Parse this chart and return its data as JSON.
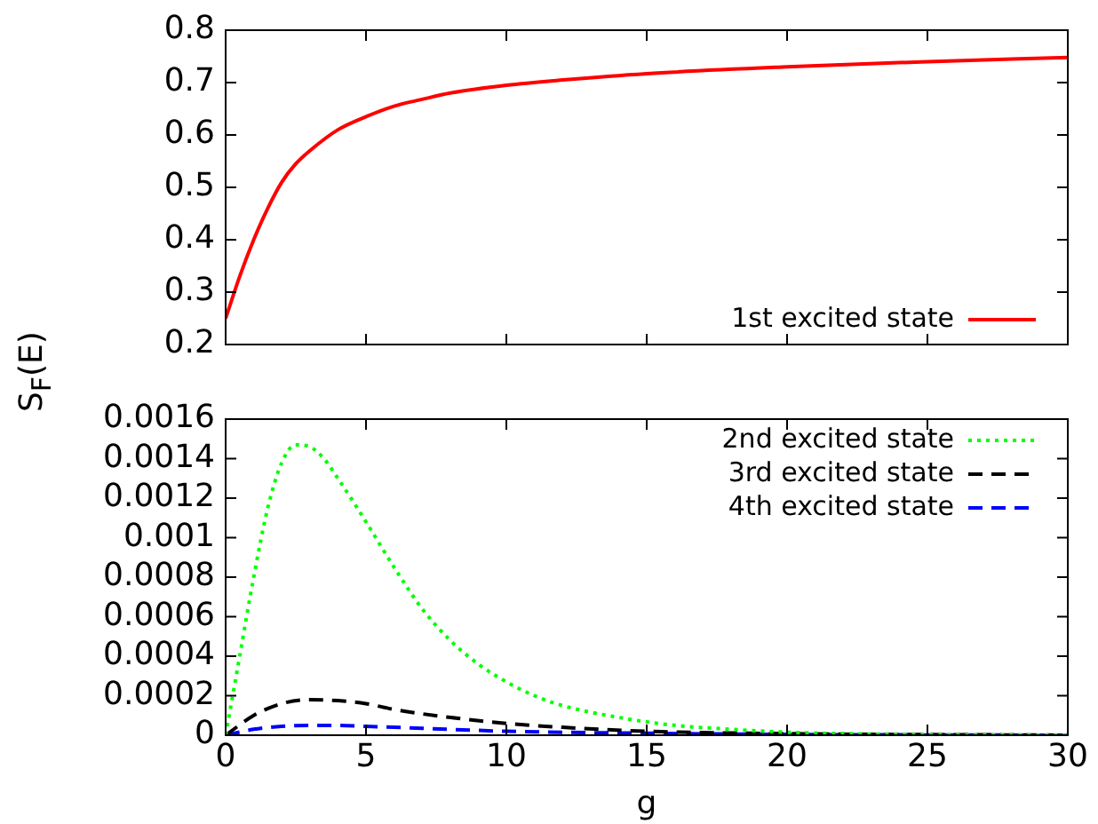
{
  "chart_data": [
    {
      "type": "line",
      "ylabel": "S$_{F}$(E)",
      "xlim": [
        0,
        30
      ],
      "xticks": [
        0,
        5,
        10,
        15,
        20,
        25,
        30
      ],
      "ylim": [
        0.2,
        0.8
      ],
      "yticks": [
        0.2,
        0.3,
        0.4,
        0.5,
        0.6,
        0.7,
        0.8
      ],
      "tick_labels": "y",
      "grid": false,
      "legend": "bottom right",
      "marker": "none",
      "series": [
        {
          "name": "1st excited state",
          "color": "#ff0000",
          "line_style": "solid",
          "x": [
            0,
            0.5,
            1,
            1.5,
            2,
            2.5,
            3,
            4,
            5,
            6,
            7,
            8,
            10,
            12,
            15,
            20,
            25,
            30
          ],
          "values": [
            0.25,
            0.33,
            0.4,
            0.46,
            0.51,
            0.545,
            0.57,
            0.61,
            0.635,
            0.655,
            0.668,
            0.68,
            0.695,
            0.705,
            0.717,
            0.73,
            0.74,
            0.748
          ]
        }
      ]
    },
    {
      "type": "line",
      "xlabel": "g",
      "xlim": [
        0,
        30
      ],
      "xticks": [
        0,
        5,
        10,
        15,
        20,
        25,
        30
      ],
      "ylim": [
        0,
        0.0016
      ],
      "yticks": [
        0,
        0.0002,
        0.0004,
        0.0006,
        0.0008,
        0.001,
        0.0012,
        0.0014,
        0.0016
      ],
      "grid": false,
      "legend": "top right",
      "marker": "none",
      "series": [
        {
          "name": "2nd excited state",
          "color": "#00ff00",
          "line_style": "dotted",
          "x": [
            0,
            0.5,
            1,
            1.5,
            2,
            2.5,
            3,
            3.5,
            4,
            5,
            6,
            7,
            8,
            9,
            10,
            11,
            12,
            14,
            16,
            18,
            20,
            25,
            30
          ],
          "values": [
            0,
            0.0004,
            0.0008,
            0.00115,
            0.00138,
            0.00147,
            0.00146,
            0.0014,
            0.0013,
            0.00108,
            0.00085,
            0.00064,
            0.00048,
            0.00036,
            0.00027,
            0.0002,
            0.00015,
            9e-05,
            5e-05,
            3e-05,
            1.5e-05,
            3e-06,
            0
          ]
        },
        {
          "name": "3rd excited state",
          "color": "#000000",
          "line_style": "dashed",
          "x": [
            0,
            1,
            2,
            3,
            4,
            5,
            6,
            8,
            10,
            12,
            15,
            20,
            30
          ],
          "values": [
            0,
            0.0001,
            0.00016,
            0.00018,
            0.000175,
            0.00016,
            0.00013,
            9e-05,
            6e-05,
            4e-05,
            2e-05,
            8e-06,
            0
          ]
        },
        {
          "name": "4th excited state",
          "color": "#0000ff",
          "line_style": "dashed",
          "x": [
            0,
            1,
            2,
            3,
            4,
            5,
            7,
            10,
            15,
            20,
            30
          ],
          "values": [
            0,
            3e-05,
            4.5e-05,
            5e-05,
            5e-05,
            4.5e-05,
            3.5e-05,
            2e-05,
            1e-05,
            4e-06,
            0
          ]
        }
      ]
    }
  ]
}
